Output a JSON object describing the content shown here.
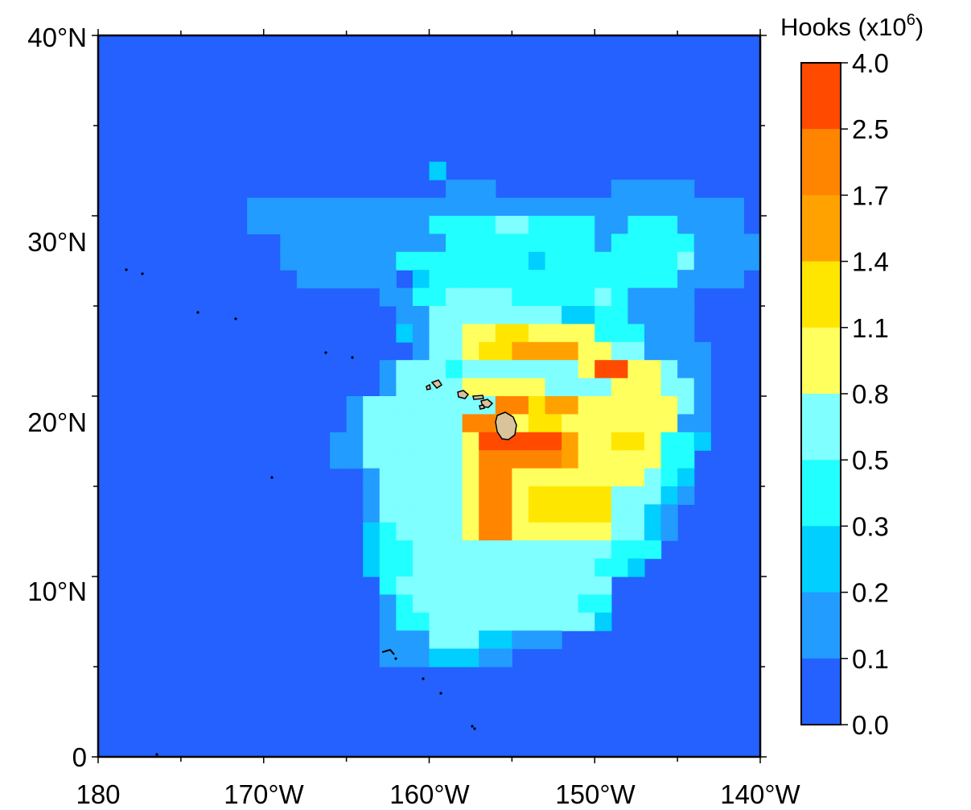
{
  "map": {
    "x_ticks": [
      "180",
      "170°W",
      "160°W",
      "150°W",
      "140°W"
    ],
    "y_ticks": [
      "0",
      "10°N",
      "20°N",
      "30°N",
      "40°N"
    ],
    "lon_range_deg": [
      180,
      220
    ],
    "lat_range_deg": [
      0,
      40
    ],
    "ocean_color": "#2461ff",
    "land_color": "#d9c39b"
  },
  "legend": {
    "title": "Hooks (x10",
    "title_exponent": "6",
    "title_close": ")",
    "labels": [
      "4.0",
      "2.5",
      "1.7",
      "1.4",
      "1.1",
      "0.8",
      "0.5",
      "0.3",
      "0.2",
      "0.1",
      "0.0"
    ],
    "colors": [
      "#ff4a00",
      "#ff8500",
      "#ffa200",
      "#ffe600",
      "#ffff5e",
      "#7fffff",
      "#22ffff",
      "#00cfff",
      "#229cff",
      "#2461ff"
    ]
  },
  "chart_data": {
    "type": "heatmap",
    "cell_size_deg": 1,
    "origin": "lon 180 (west edge), lat 40°N (north edge); row index = degrees south of 40°N, column index = degrees east of 180",
    "level_key": {
      "0": "0.0–0.1",
      "1": "0.1–0.2",
      "2": "0.2–0.3",
      "3": "0.3–0.5",
      "4": "0.5–0.8",
      "5": "0.8–1.1",
      "6": "1.1–1.4",
      "7": "1.4–1.7",
      "8": "1.7–2.5",
      "9": "2.5–4.0"
    },
    "grid": [
      "0000000000000000000000000000000000000000",
      "0000000000000000000000000000000000000000",
      "0000000000000000000000000000000000000000",
      "0000000000000000000000000000000000000000",
      "0000000000000000000000000000000000000000",
      "0000000000000000000000000000000000000000",
      "0000000000000000000000000000000000000000",
      "0000000000000000000020000000000000000000",
      "0000000000000000000001110000000111110000",
      "0000000001111111111111111111111111111110",
      "0000000001111111111133334433331133311110",
      "0000000000011111111113333333331333331111",
      "0000000000011111113333333323333333341111",
      "0000000000001111110233333333333333311110",
      "0000000000000000011334444333334311110000",
      "0000000000000000001144444444223311110000",
      "0000000000000000002144556655553331110000",
      "0000000000000000000144566777755441111000",
      "0000000000000000014443444444459955411000",
      "0000000000000000014444555554444555441000",
      "0000000000000001444444448867755555541000",
      "0000000000000001444444887566555555511000",
      "0000000000000011444444599999755665332000",
      "0000000000000011444444588888755555330000",
      "0000000000000000144444588555555554320000",
      "0000000000000000144444588566666444210000",
      "0000000000000000144444588566666442100000",
      "0000000000000000234444588555555442100000",
      "0000000000000000233444444444444333000000",
      "0000000000000000233444444444443320000000",
      "0000000000000000034444444444444000000000",
      "0000000000000000013444444444433000000000",
      "0000000000000000013344444444442000000000",
      "0000000000000000011144422111000000000000",
      "0000000000000000011122211000000000000000",
      "0000000000000000000000000000000000000000",
      "0000000000000000000000000000000000000000",
      "0000000000000000000000000000000000000000",
      "0000000000000000000000000000000000000000",
      "0000000000000000000000000000000000000000"
    ]
  }
}
